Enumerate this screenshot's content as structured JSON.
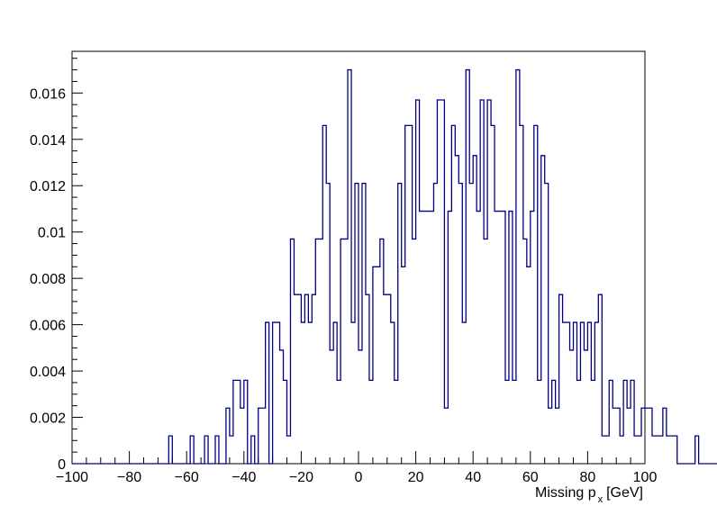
{
  "chart_data": {
    "type": "bar",
    "histogram": true,
    "title": "",
    "xlabel": {
      "prefix": "Missing p",
      "subscript": "x",
      "suffix": "[GeV]"
    },
    "ylabel": "",
    "xlim": [
      -100,
      100
    ],
    "ylim": [
      0,
      0.0178
    ],
    "x_ticks": [
      -100,
      -80,
      -60,
      -40,
      -20,
      0,
      20,
      40,
      60,
      80,
      100
    ],
    "x_tick_labels": [
      "−100",
      "−80",
      "−60",
      "−40",
      "−20",
      "0",
      "20",
      "40",
      "60",
      "80",
      "100"
    ],
    "y_ticks": [
      0,
      0.002,
      0.004,
      0.006,
      0.008,
      0.01,
      0.012,
      0.014,
      0.016
    ],
    "y_tick_labels": [
      "0",
      "0.002",
      "0.004",
      "0.006",
      "0.008",
      "0.01",
      "0.012",
      "0.014",
      "0.016"
    ],
    "bin_low": -100,
    "bin_width": 1.25,
    "values": [
      0,
      0,
      0,
      0,
      0,
      0,
      0,
      0,
      0,
      0,
      0,
      0,
      0,
      0,
      0,
      0,
      0,
      0,
      0,
      0,
      0,
      0,
      0,
      0,
      0,
      0,
      0,
      0.0012,
      0,
      0,
      0,
      0,
      0,
      0.0012,
      0,
      0,
      0,
      0.0012,
      0,
      0,
      0.0012,
      0,
      0,
      0.0024,
      0.0012,
      0.0036,
      0.0036,
      0.0024,
      0.0036,
      0,
      0.0012,
      0,
      0.0024,
      0.0024,
      0.0061,
      0,
      0.0061,
      0.0061,
      0.0049,
      0.0036,
      0.0012,
      0.0097,
      0.0073,
      0.0073,
      0.0061,
      0.0073,
      0.0061,
      0.0073,
      0.0097,
      0.0097,
      0.0146,
      0.0121,
      0.0049,
      0.0061,
      0.0036,
      0.0097,
      0.0097,
      0.017,
      0.0061,
      0.0121,
      0.0049,
      0.0121,
      0.0073,
      0.0036,
      0.0085,
      0.0085,
      0.0097,
      0.0073,
      0.0073,
      0.0061,
      0.0036,
      0.0121,
      0.0085,
      0.0146,
      0.0146,
      0.0097,
      0.0157,
      0.0109,
      0.0109,
      0.0109,
      0.0109,
      0.0121,
      0.0157,
      0.0157,
      0.0024,
      0.0109,
      0.0146,
      0.0133,
      0.0121,
      0.0061,
      0.017,
      0.0121,
      0.0133,
      0.0109,
      0.0157,
      0.0097,
      0.0157,
      0.0146,
      0.0109,
      0.0109,
      0.0109,
      0.0036,
      0.0109,
      0.0036,
      0.017,
      0.0146,
      0.0097,
      0.0085,
      0.0109,
      0.0146,
      0.0036,
      0.0133,
      0.0121,
      0.0024,
      0.0036,
      0.0024,
      0.0073,
      0.0061,
      0.0061,
      0.0049,
      0.0061,
      0.0036,
      0.0061,
      0.0049,
      0.0061,
      0.0036,
      0.0061,
      0.0073,
      0.0012,
      0.0012,
      0.0036,
      0.0024,
      0.0024,
      0.0012,
      0.0036,
      0.0024,
      0.0036,
      0.0012,
      0.0012,
      0.0024,
      0.0024,
      0.0024,
      0.0012,
      0.0012,
      0.0012,
      0.0024,
      0.0012,
      0.0012,
      0.0012,
      0,
      0,
      0,
      0,
      0,
      0.0012,
      0,
      0,
      0,
      0,
      0,
      0,
      0,
      0,
      0,
      0,
      0,
      0,
      0,
      0,
      0,
      0,
      0,
      0,
      0,
      0,
      0,
      0,
      0,
      0,
      0
    ],
    "line_color": "#000080",
    "grid": false,
    "legend": "none"
  }
}
